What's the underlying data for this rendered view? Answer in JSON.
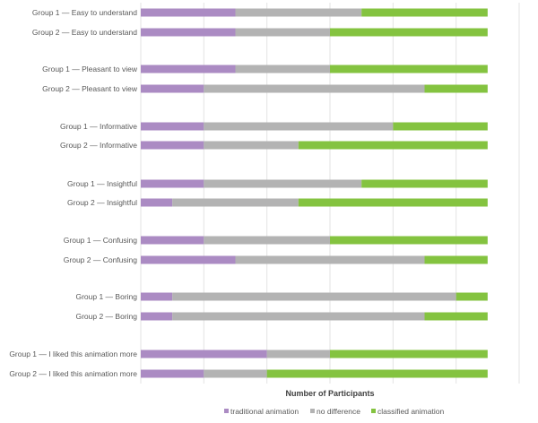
{
  "chart_data": {
    "type": "bar",
    "orientation": "horizontal",
    "stacked": true,
    "title": "",
    "xlabel": "Number of Participants",
    "ylabel": "",
    "xlim": [
      0,
      12
    ],
    "x_grid_step": 2,
    "grid": true,
    "x_tick_labels_shown": false,
    "legend_position": "bottom",
    "categories": [
      "Group 1 — Easy to understand",
      "Group 2 — Easy to understand",
      "Group 1 — Pleasant to view",
      "Group 2 — Pleasant to view",
      "Group 1 — Informative",
      "Group 2 — Informative",
      "Group 1 — Insightful",
      "Group 2 — Insightful",
      "Group 1 — Confusing",
      "Group 2 — Confusing",
      "Group 1 — Boring",
      "Group 2 — Boring",
      "Group 1 — I liked this animation more",
      "Group 2 — I liked this animation more"
    ],
    "series": [
      {
        "name": "traditional animation",
        "color": "#ab8bc3",
        "values": [
          3,
          3,
          3,
          2,
          2,
          2,
          2,
          1,
          2,
          3,
          1,
          1,
          4,
          2
        ]
      },
      {
        "name": "no difference",
        "color": "#b3b3b3",
        "values": [
          4,
          3,
          3,
          7,
          6,
          3,
          5,
          4,
          4,
          6,
          9,
          8,
          2,
          2
        ]
      },
      {
        "name": "classified animation",
        "color": "#84c340",
        "values": [
          4,
          5,
          5,
          2,
          3,
          6,
          4,
          6,
          5,
          2,
          1,
          2,
          5,
          7
        ]
      }
    ]
  }
}
